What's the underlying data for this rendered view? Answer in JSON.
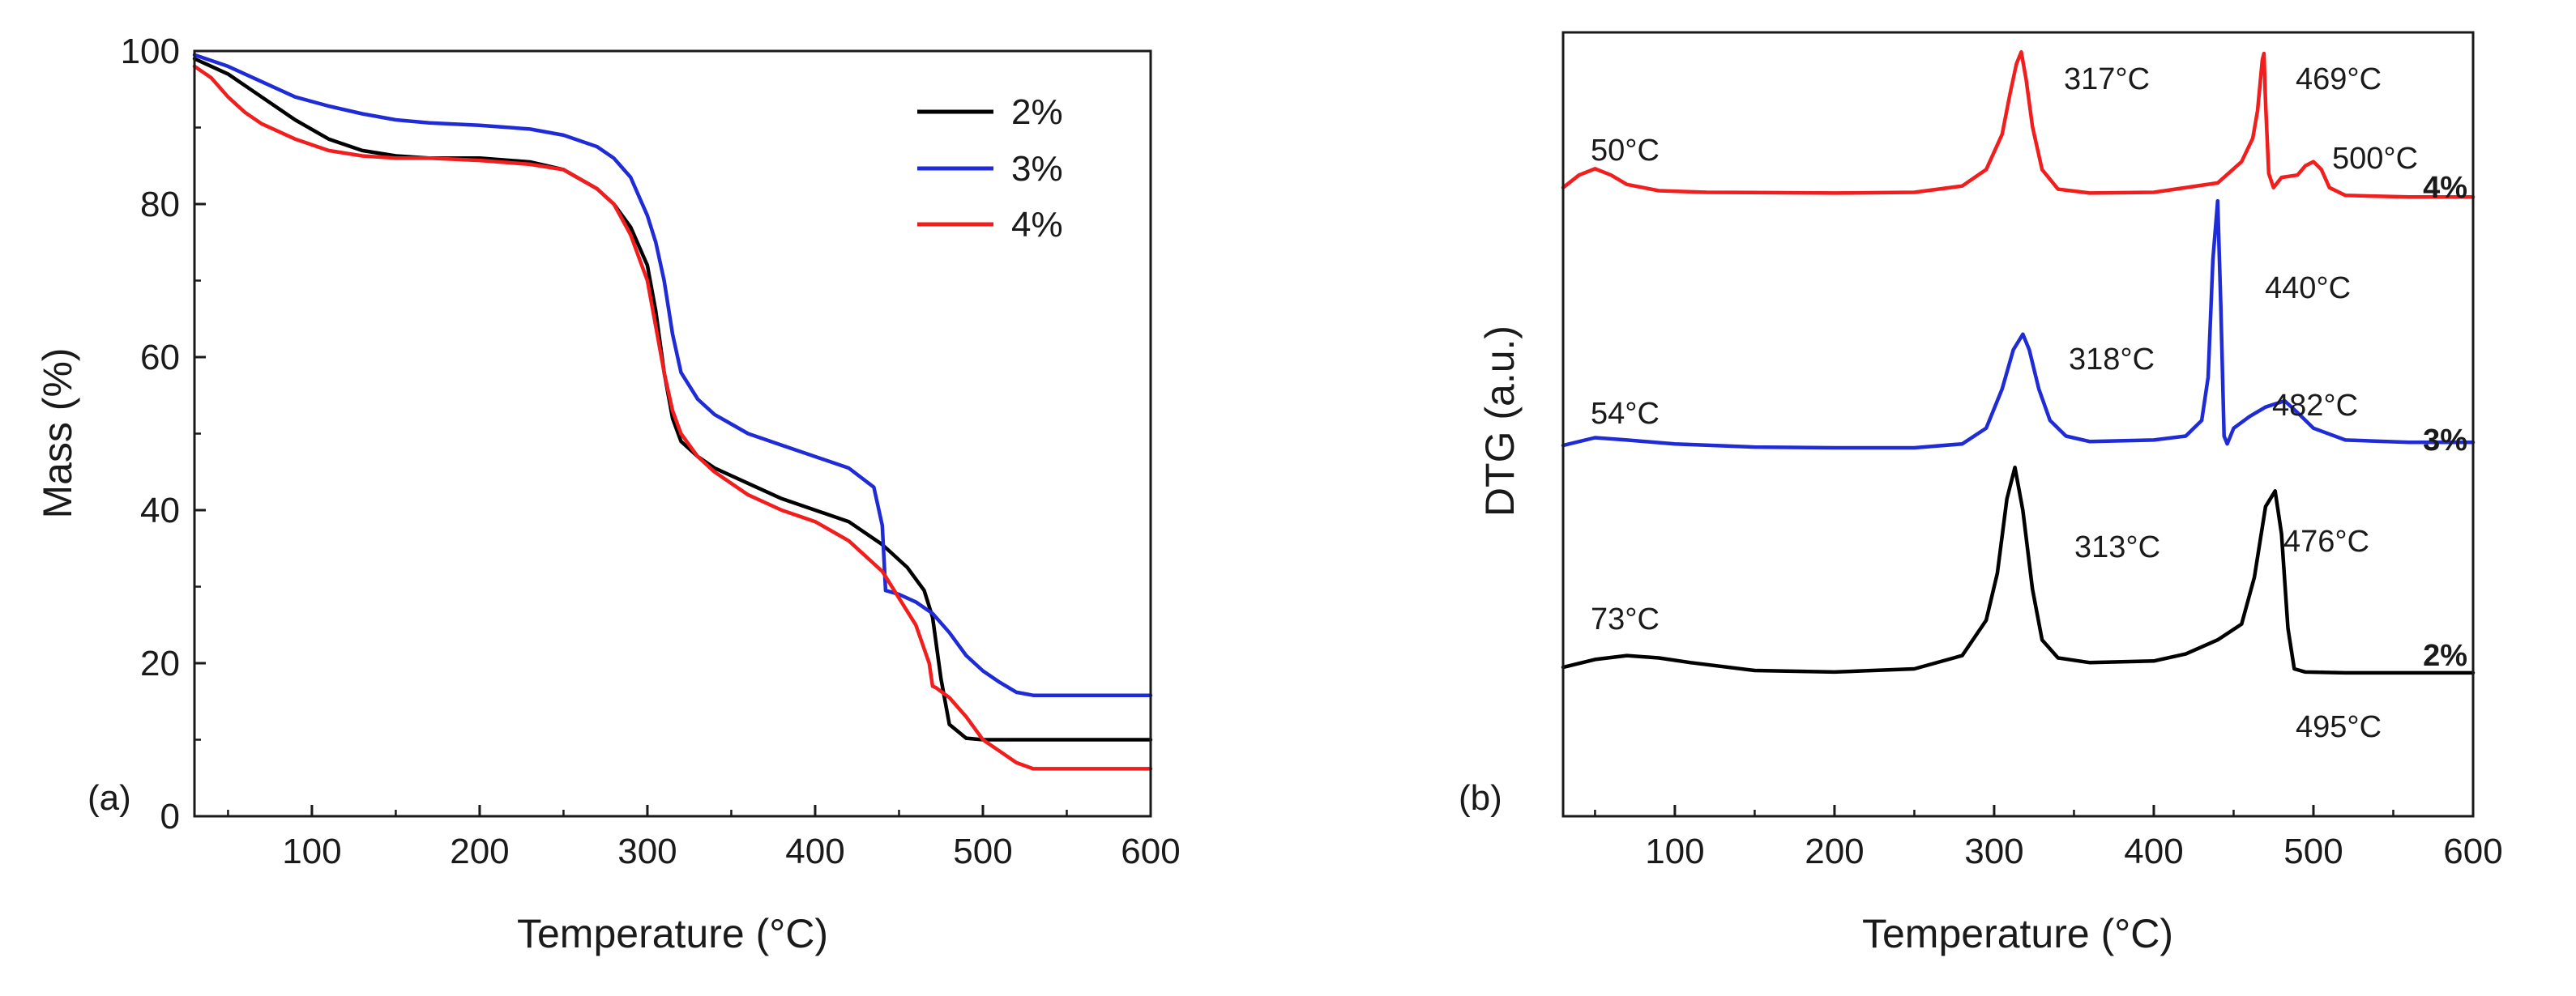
{
  "chart_data": [
    {
      "type": "line",
      "panel_label": "(a)",
      "title": "",
      "xlabel": "Temperature (°C)",
      "ylabel": "Mass (%)",
      "xlim": [
        30,
        600
      ],
      "ylim": [
        0,
        100
      ],
      "xticks": [
        100,
        200,
        300,
        400,
        500,
        600
      ],
      "yticks": [
        0,
        20,
        40,
        60,
        80,
        100
      ],
      "legend": {
        "placement": "top-right",
        "entries": [
          "2%",
          "3%",
          "4%"
        ]
      },
      "series": [
        {
          "name": "2%",
          "color": "#000000",
          "x": [
            30,
            50,
            70,
            90,
            110,
            130,
            150,
            170,
            200,
            230,
            250,
            270,
            280,
            290,
            300,
            305,
            310,
            315,
            320,
            330,
            340,
            360,
            380,
            400,
            420,
            440,
            455,
            465,
            470,
            475,
            480,
            490,
            500,
            520,
            560,
            600
          ],
          "values": [
            99,
            97,
            94,
            91,
            88.5,
            87,
            86.3,
            86,
            86,
            85.5,
            84.5,
            82,
            80,
            77,
            72,
            66,
            58,
            52,
            49,
            47,
            45.5,
            43.5,
            41.5,
            40,
            38.5,
            35.5,
            32.5,
            29.5,
            26,
            18,
            12,
            10.2,
            10,
            10,
            10,
            10
          ]
        },
        {
          "name": "3%",
          "color": "#1f2bd6",
          "x": [
            30,
            50,
            70,
            90,
            110,
            130,
            150,
            170,
            200,
            230,
            250,
            270,
            280,
            290,
            300,
            305,
            310,
            315,
            320,
            330,
            340,
            360,
            380,
            400,
            420,
            435,
            440,
            442,
            450,
            460,
            470,
            480,
            490,
            500,
            510,
            520,
            530,
            560,
            600
          ],
          "values": [
            99.5,
            98,
            96,
            94,
            92.8,
            91.8,
            91,
            90.6,
            90.3,
            89.8,
            89,
            87.5,
            86,
            83.5,
            78.5,
            75,
            70,
            63,
            58,
            54.5,
            52.5,
            50,
            48.5,
            47,
            45.5,
            43,
            38,
            29.5,
            29,
            28,
            26.5,
            24,
            21,
            19,
            17.5,
            16.2,
            15.8,
            15.8,
            15.8
          ]
        },
        {
          "name": "4%",
          "color": "#f21d1d",
          "x": [
            30,
            40,
            50,
            60,
            70,
            90,
            110,
            130,
            150,
            170,
            200,
            230,
            250,
            270,
            280,
            290,
            300,
            305,
            310,
            315,
            320,
            330,
            340,
            360,
            380,
            400,
            420,
            440,
            460,
            468,
            470,
            472,
            480,
            490,
            500,
            510,
            520,
            530,
            560,
            600
          ],
          "values": [
            98,
            96.5,
            94,
            92,
            90.5,
            88.5,
            87,
            86.3,
            86,
            86,
            85.7,
            85.2,
            84.5,
            82,
            80,
            76,
            70,
            64,
            58,
            53,
            50,
            47,
            45,
            42,
            40,
            38.5,
            36,
            32,
            25,
            20,
            17,
            16.8,
            15.5,
            13,
            10,
            8.5,
            7,
            6.2,
            6.2,
            6.2
          ]
        }
      ]
    },
    {
      "type": "line",
      "panel_label": "(b)",
      "title": "",
      "xlabel": "Temperature (°C)",
      "ylabel": "DTG (a.u.)",
      "xlim": [
        30,
        600
      ],
      "ylim": [
        0,
        100
      ],
      "xticks": [
        100,
        200,
        300,
        400,
        500,
        600
      ],
      "yticks": [],
      "series": [
        {
          "name": "4%",
          "color": "#f21d1d",
          "x": [
            30,
            40,
            50,
            60,
            70,
            90,
            120,
            200,
            250,
            280,
            295,
            305,
            310,
            314,
            317,
            320,
            324,
            330,
            340,
            360,
            400,
            440,
            455,
            462,
            465,
            468,
            469,
            470,
            472,
            475,
            480,
            490,
            495,
            500,
            505,
            510,
            520,
            560,
            600
          ],
          "values": [
            80.2,
            81.8,
            82.6,
            81.8,
            80.6,
            79.8,
            79.6,
            79.5,
            79.6,
            80.4,
            82.5,
            87,
            92.2,
            96,
            97.5,
            94,
            88,
            82.5,
            80,
            79.5,
            79.6,
            80.8,
            83.5,
            86.5,
            90,
            96.5,
            97.3,
            91,
            82,
            80.2,
            81.5,
            81.8,
            83,
            83.5,
            82.5,
            80.2,
            79.2,
            79,
            79
          ]
        },
        {
          "name": "3%",
          "color": "#1f2bd6",
          "x": [
            30,
            50,
            70,
            100,
            150,
            200,
            250,
            280,
            295,
            305,
            312,
            318,
            322,
            328,
            335,
            345,
            360,
            400,
            420,
            430,
            434,
            437,
            440,
            442,
            444,
            446,
            450,
            460,
            470,
            482,
            490,
            500,
            520,
            560,
            600
          ],
          "values": [
            47.3,
            48.3,
            48,
            47.5,
            47.1,
            47,
            47,
            47.5,
            49.5,
            54.5,
            59.5,
            61.5,
            59.5,
            54.5,
            50.5,
            48.5,
            47.8,
            48,
            48.5,
            50.5,
            56,
            71,
            78.5,
            65,
            48.5,
            47.5,
            49.5,
            51,
            52.2,
            53,
            51.5,
            49.5,
            48,
            47.7,
            47.7
          ]
        },
        {
          "name": "2%",
          "color": "#000000",
          "x": [
            30,
            50,
            70,
            90,
            110,
            150,
            200,
            250,
            280,
            295,
            302,
            308,
            313,
            318,
            324,
            330,
            340,
            360,
            400,
            420,
            440,
            455,
            463,
            470,
            476,
            480,
            484,
            488,
            495,
            520,
            560,
            600
          ],
          "values": [
            19,
            20,
            20.5,
            20.2,
            19.6,
            18.6,
            18.4,
            18.8,
            20.5,
            25,
            31,
            40.5,
            44.5,
            39,
            29,
            22.5,
            20.2,
            19.6,
            19.8,
            20.7,
            22.5,
            24.5,
            30.5,
            39.5,
            41.5,
            36,
            24,
            18.8,
            18.4,
            18.3,
            18.3,
            18.3
          ]
        }
      ],
      "annotations": [
        {
          "text": "50°C",
          "series": "4%"
        },
        {
          "text": "317°C",
          "series": "4%"
        },
        {
          "text": "469°C",
          "series": "4%"
        },
        {
          "text": "500°C",
          "series": "4%"
        },
        {
          "text": "54°C",
          "series": "3%"
        },
        {
          "text": "318°C",
          "series": "3%"
        },
        {
          "text": "440°C",
          "series": "3%"
        },
        {
          "text": "482°C",
          "series": "3%"
        },
        {
          "text": "73°C",
          "series": "2%"
        },
        {
          "text": "313°C",
          "series": "2%"
        },
        {
          "text": "476°C",
          "series": "2%"
        },
        {
          "text": "495°C",
          "series": "2%"
        }
      ],
      "series_tags": [
        {
          "text": "4%",
          "color": "#f21d1d"
        },
        {
          "text": "3%",
          "color": "#1f2bd6"
        },
        {
          "text": "2%",
          "color": "#000000"
        }
      ]
    }
  ]
}
